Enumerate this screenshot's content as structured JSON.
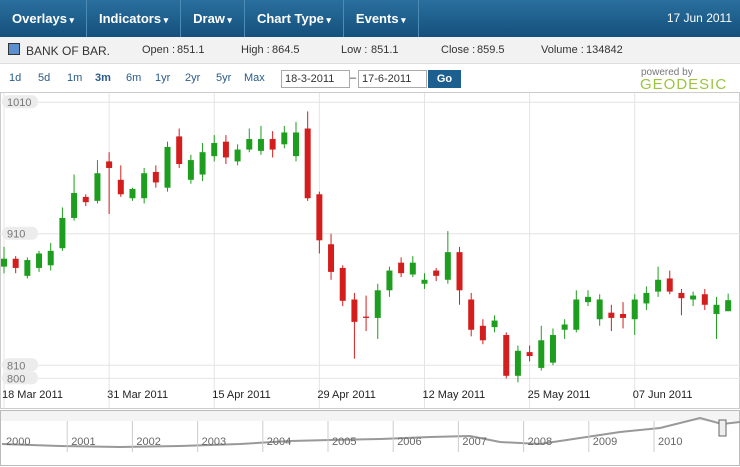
{
  "menu": [
    "Overlays",
    "Indicators",
    "Draw",
    "Chart Type",
    "Events"
  ],
  "date": "17 Jun 2011",
  "quote": {
    "symbol": "BANK OF BAR.",
    "open_label": "Open :",
    "open": 851.1,
    "high_label": "High :",
    "high": 864.5,
    "low_label": "Low :",
    "low": 851.1,
    "close_label": "Close :",
    "close": 859.5,
    "volume_label": "Volume :",
    "volume": 134842
  },
  "ranges": [
    "1d",
    "5d",
    "1m",
    "3m",
    "6m",
    "1yr",
    "2yr",
    "5yr",
    "Max"
  ],
  "from": "18-3-2011",
  "to": "17-6-2011",
  "go": "Go",
  "powered": "powered by",
  "brand": "GEODESIC",
  "chart_data": {
    "type": "candlestick",
    "categories": [
      "18 Mar 2011",
      null,
      null,
      null,
      null,
      null,
      null,
      null,
      null,
      "31 Mar 2011",
      null,
      null,
      null,
      null,
      null,
      null,
      null,
      null,
      "15 Apr 2011",
      null,
      null,
      null,
      null,
      null,
      null,
      null,
      null,
      "29 Apr 2011",
      null,
      null,
      null,
      null,
      null,
      null,
      null,
      null,
      "12 May 2011",
      null,
      null,
      null,
      null,
      null,
      null,
      null,
      null,
      "25 May 2011",
      null,
      null,
      null,
      null,
      null,
      null,
      null,
      null,
      "07 Jun 2011",
      null,
      null,
      null,
      null,
      null,
      null,
      null,
      null
    ],
    "open": [
      885,
      891,
      878,
      884,
      886,
      899,
      922,
      938,
      935,
      965,
      951,
      937,
      937,
      957,
      945,
      984,
      951,
      955,
      969,
      980,
      965,
      974,
      973,
      982,
      978,
      969,
      990,
      940,
      902,
      884,
      860,
      847,
      846,
      867,
      888,
      879,
      872,
      882,
      875,
      896,
      860,
      840,
      839,
      833,
      802,
      820,
      808,
      812,
      837,
      837,
      858,
      845,
      850,
      849,
      845,
      857,
      866,
      876,
      865,
      860,
      864,
      849,
      851.1
    ],
    "high": [
      900,
      893,
      892,
      897,
      903,
      930,
      955,
      940,
      966,
      972,
      962,
      945,
      960,
      962,
      980,
      990,
      970,
      979,
      985,
      985,
      978,
      990,
      992,
      988,
      992,
      995,
      1003,
      942,
      910,
      886,
      865,
      863,
      872,
      885,
      892,
      893,
      880,
      884,
      912,
      900,
      865,
      845,
      848,
      835,
      825,
      825,
      840,
      838,
      845,
      867,
      867,
      864,
      856,
      858,
      864,
      870,
      885,
      882,
      868,
      866,
      868,
      862,
      864.5
    ],
    "low": [
      880,
      880,
      876,
      881,
      882,
      897,
      920,
      931,
      933,
      925,
      938,
      935,
      933,
      945,
      942,
      960,
      948,
      950,
      965,
      963,
      962,
      972,
      970,
      968,
      975,
      965,
      935,
      895,
      875,
      855,
      815,
      836,
      830,
      862,
      877,
      877,
      868,
      874,
      872,
      856,
      832,
      826,
      835,
      800,
      797,
      813,
      806,
      810,
      830,
      835,
      855,
      840,
      836,
      838,
      833,
      852,
      862,
      864,
      848,
      855,
      852,
      830,
      851.1
    ],
    "close": [
      891,
      884,
      890,
      895,
      897,
      922,
      941,
      934,
      956,
      960,
      940,
      944,
      956,
      949,
      976,
      963,
      966,
      972,
      979,
      968,
      974,
      982,
      982,
      974,
      987,
      987,
      937,
      905,
      881,
      859,
      843,
      846,
      867,
      882,
      880,
      888,
      875,
      878,
      896,
      867,
      837,
      829,
      844,
      802,
      821,
      817,
      829,
      833,
      841,
      860,
      862,
      860,
      846,
      846,
      860,
      865,
      875,
      866,
      861,
      863,
      856,
      856,
      859.5
    ],
    "up_color": "#1e9e1e",
    "down_color": "#d41e1e",
    "ylim": [
      795,
      1017
    ],
    "yticks": [
      800,
      810,
      910,
      1010
    ],
    "grid": true
  },
  "navigator": {
    "years": [
      "2000",
      "2001",
      "2002",
      "2003",
      "2004",
      "2005",
      "2006",
      "2007",
      "2008",
      "2009",
      "2010"
    ]
  }
}
